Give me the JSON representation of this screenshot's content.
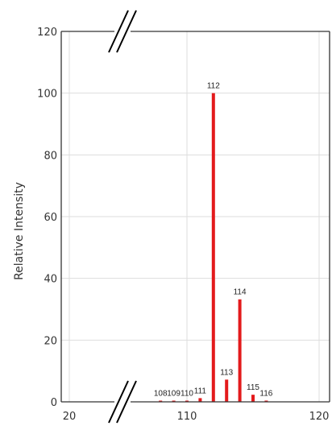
{
  "chart_data": {
    "type": "bar",
    "title": "",
    "xlabel": "",
    "ylabel": "Relative Intensity",
    "ylim": [
      0,
      120
    ],
    "yticks": [
      0,
      20,
      40,
      60,
      80,
      100,
      120
    ],
    "xticks": [
      20,
      110,
      120
    ],
    "x_axis_break": true,
    "grid": true,
    "series": [
      {
        "x": [
          108,
          109,
          110,
          111,
          112,
          113,
          114,
          115,
          116
        ],
        "values": [
          0.3,
          0.3,
          0.3,
          1.2,
          100,
          7.2,
          33.2,
          2.3,
          0.4
        ],
        "labels": [
          "108",
          "109",
          "110",
          "111",
          "112",
          "113",
          "114",
          "115",
          "116"
        ]
      }
    ],
    "colors": {
      "bar": "#e31a1c",
      "grid": "#dddddd",
      "axis": "#333333"
    }
  }
}
